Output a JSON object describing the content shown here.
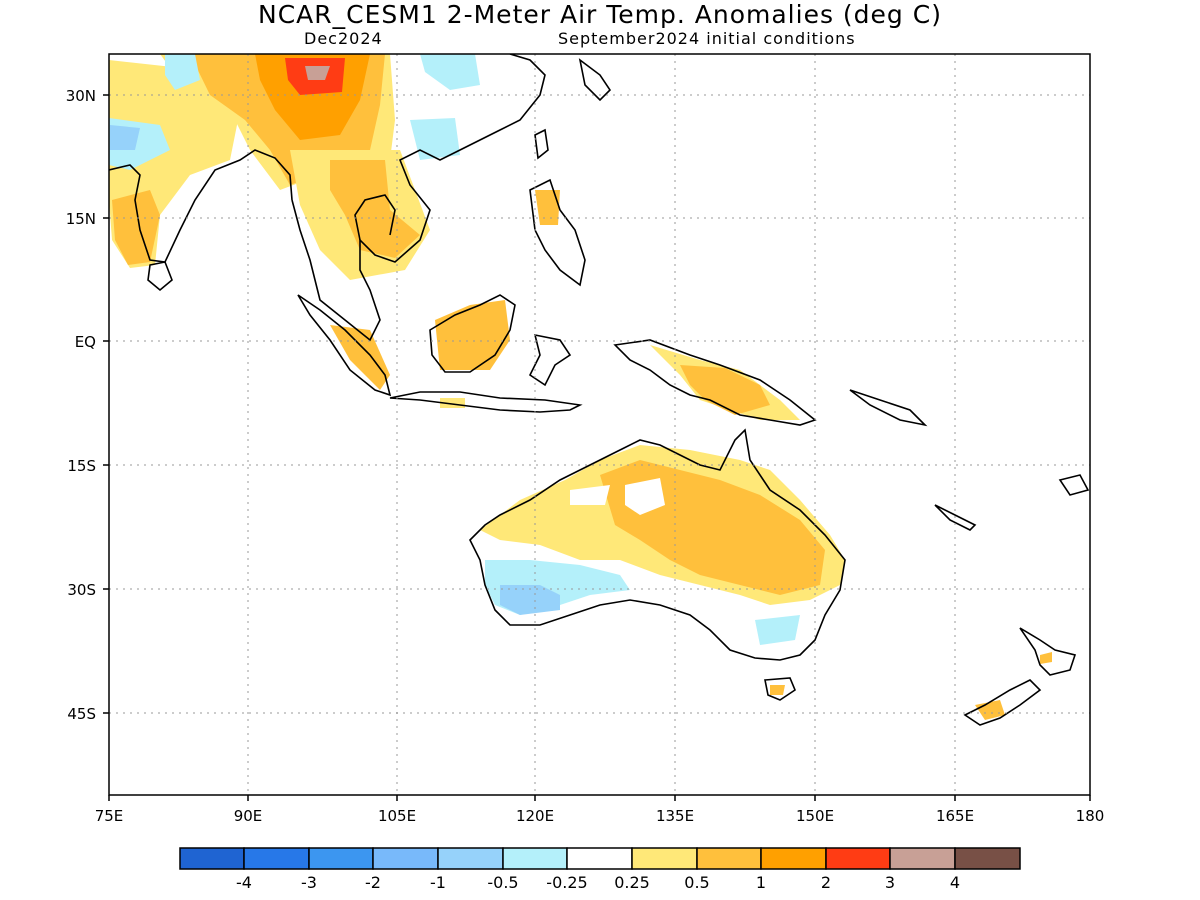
{
  "title": "NCAR_CESM1 2-Meter Air Temp. Anomalies (deg C)",
  "subtitle_left": "Dec2024",
  "subtitle_right": "September2024 initial conditions",
  "axes": {
    "x_ticks": [
      "75E",
      "90E",
      "105E",
      "120E",
      "135E",
      "150E",
      "165E",
      "180"
    ],
    "y_ticks": [
      "30N",
      "15N",
      "EQ",
      "15S",
      "30S",
      "45S"
    ]
  },
  "colorbar": {
    "colors": [
      "#1f64d2",
      "#2778e8",
      "#3c96f0",
      "#78b9fa",
      "#96d2fa",
      "#b4f0fa",
      "#ffffff",
      "#ffe878",
      "#ffc03c",
      "#ffa000",
      "#ff3c14",
      "#c8a096",
      "#785046"
    ],
    "labels": [
      "-4",
      "-3",
      "-2",
      "-1",
      "-0.5",
      "-0.25",
      "0.25",
      "0.5",
      "1",
      "2",
      "3",
      "4"
    ]
  },
  "colors": {
    "warm_light": "#ffe878",
    "warm_mid": "#ffc03c",
    "warm_strong": "#ffa000",
    "hot": "#ff3c14",
    "hottest": "#c8a096",
    "cool_light": "#b4f0fa",
    "cool_mid": "#96d2fa",
    "cool_strong": "#78b9fa",
    "coast": "#000000",
    "grid": "#999999"
  }
}
